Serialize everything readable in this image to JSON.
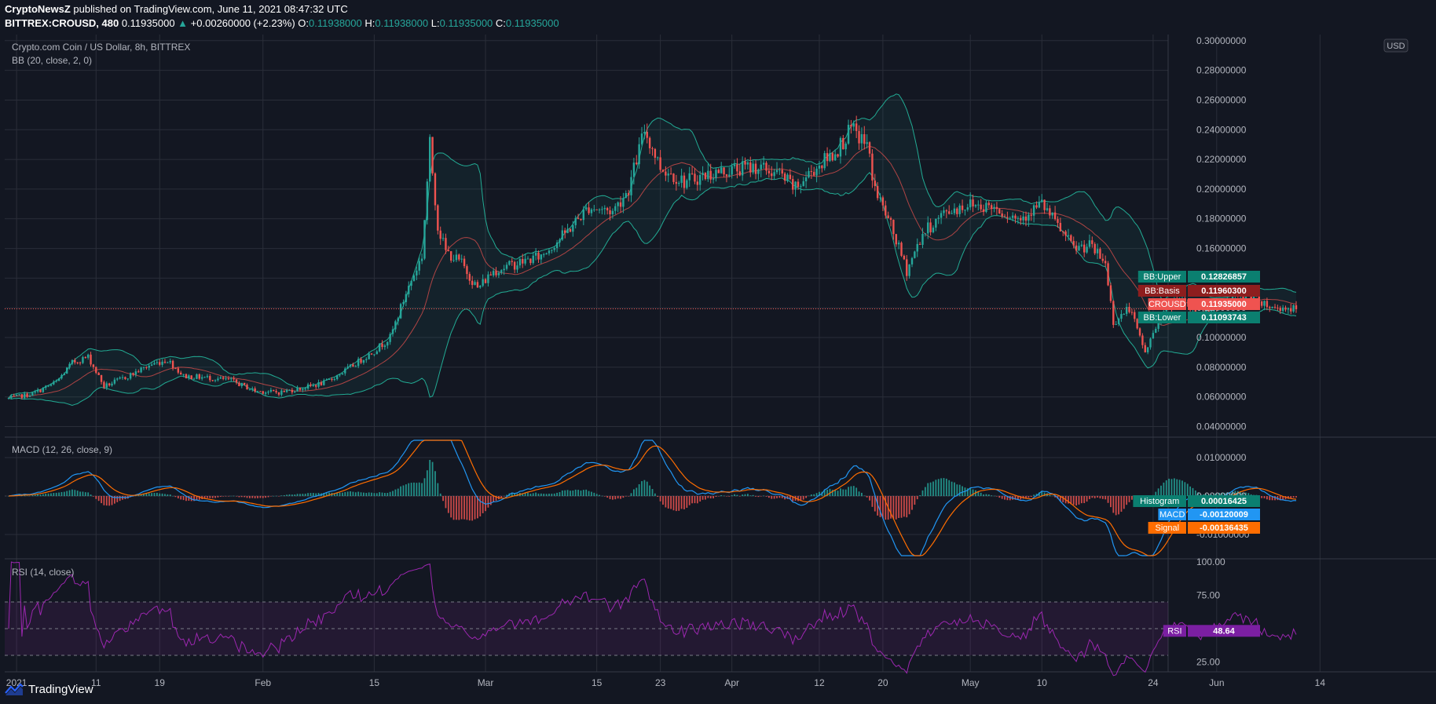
{
  "header": {
    "author": "CryptoNewsZ",
    "published": "published on TradingView.com, June 11, 2021 08:47:32 UTC",
    "symbol": "BITTREX:CROUSD, 480",
    "last": "0.11935000",
    "change_arrow": "▲",
    "change": "+0.00260000 (+2.23%)",
    "o_label": "O:",
    "o": "0.11938000",
    "h_label": "H:",
    "h": "0.11938000",
    "l_label": "L:",
    "l": "0.11935000",
    "c_label": "C:",
    "c": "0.11935000"
  },
  "panes": {
    "price_title": "Crypto.com Coin / US Dollar, 8h, BITTREX",
    "bb_title": "BB (20, close, 2, 0)",
    "currency": "USD",
    "macd_title": "MACD (12, 26, close, 9)",
    "rsi_title": "RSI (14, close)"
  },
  "footer": {
    "brand": "TradingView"
  },
  "colors": {
    "background": "#131722",
    "up": "#26a69a",
    "down": "#ef5350",
    "bb_band": "#22ab94",
    "bb_basis": "#ef5350",
    "macd": "#2196f3",
    "signal": "#ff6d00",
    "rsi": "#9c27b0",
    "grid": "#2a2e39"
  },
  "chart_data": [
    {
      "type": "candlestick",
      "name": "CROUSD price with Bollinger Bands",
      "title": "Crypto.com Coin / US Dollar, 8h, BITTREX",
      "interval": "8h",
      "ylim": [
        0.035,
        0.302
      ],
      "y_ticks": [
        "0.04000000",
        "0.06000000",
        "0.08000000",
        "0.10000000",
        "0.12000000",
        "0.14000000",
        "0.16000000",
        "0.18000000",
        "0.20000000",
        "0.22000000",
        "0.24000000",
        "0.26000000",
        "0.28000000",
        "0.30000000"
      ],
      "x_ticks": [
        "2021",
        "11",
        "19",
        "Feb",
        "15",
        "Mar",
        "15",
        "23",
        "Apr",
        "12",
        "20",
        "May",
        "10",
        "24",
        "Jun",
        "14"
      ],
      "x_tick_dates": [
        "2021-01-01",
        "2021-01-11",
        "2021-01-19",
        "2021-02-01",
        "2021-02-15",
        "2021-03-01",
        "2021-03-15",
        "2021-03-23",
        "2021-04-01",
        "2021-04-12",
        "2021-04-20",
        "2021-05-01",
        "2021-05-10",
        "2021-05-24",
        "2021-06-01",
        "2021-06-14"
      ],
      "close_path": [
        [
          "2020-12-31",
          0.059
        ],
        [
          "2021-01-03",
          0.062
        ],
        [
          "2021-01-06",
          0.07
        ],
        [
          "2021-01-08",
          0.083
        ],
        [
          "2021-01-10",
          0.087
        ],
        [
          "2021-01-12",
          0.067
        ],
        [
          "2021-01-15",
          0.074
        ],
        [
          "2021-01-18",
          0.082
        ],
        [
          "2021-01-20",
          0.085
        ],
        [
          "2021-01-22",
          0.074
        ],
        [
          "2021-01-25",
          0.073
        ],
        [
          "2021-01-28",
          0.071
        ],
        [
          "2021-01-31",
          0.064
        ],
        [
          "2021-02-03",
          0.063
        ],
        [
          "2021-02-06",
          0.066
        ],
        [
          "2021-02-09",
          0.07
        ],
        [
          "2021-02-12",
          0.08
        ],
        [
          "2021-02-15",
          0.091
        ],
        [
          "2021-02-17",
          0.1
        ],
        [
          "2021-02-19",
          0.13
        ],
        [
          "2021-02-21",
          0.155
        ],
        [
          "2021-02-22",
          0.23
        ],
        [
          "2021-02-23",
          0.175
        ],
        [
          "2021-02-24",
          0.158
        ],
        [
          "2021-02-26",
          0.15
        ],
        [
          "2021-02-28",
          0.133
        ],
        [
          "2021-03-02",
          0.145
        ],
        [
          "2021-03-05",
          0.15
        ],
        [
          "2021-03-08",
          0.155
        ],
        [
          "2021-03-11",
          0.17
        ],
        [
          "2021-03-14",
          0.188
        ],
        [
          "2021-03-17",
          0.185
        ],
        [
          "2021-03-19",
          0.2
        ],
        [
          "2021-03-21",
          0.24
        ],
        [
          "2021-03-23",
          0.215
        ],
        [
          "2021-03-26",
          0.205
        ],
        [
          "2021-03-29",
          0.21
        ],
        [
          "2021-04-01",
          0.213
        ],
        [
          "2021-04-04",
          0.215
        ],
        [
          "2021-04-07",
          0.21
        ],
        [
          "2021-04-09",
          0.2
        ],
        [
          "2021-04-11",
          0.212
        ],
        [
          "2021-04-14",
          0.225
        ],
        [
          "2021-04-16",
          0.24
        ],
        [
          "2021-04-18",
          0.23
        ],
        [
          "2021-04-19",
          0.2
        ],
        [
          "2021-04-21",
          0.175
        ],
        [
          "2021-04-23",
          0.145
        ],
        [
          "2021-04-25",
          0.17
        ],
        [
          "2021-04-28",
          0.185
        ],
        [
          "2021-05-01",
          0.19
        ],
        [
          "2021-05-04",
          0.188
        ],
        [
          "2021-05-07",
          0.18
        ],
        [
          "2021-05-10",
          0.19
        ],
        [
          "2021-05-12",
          0.175
        ],
        [
          "2021-05-14",
          0.16
        ],
        [
          "2021-05-16",
          0.162
        ],
        [
          "2021-05-18",
          0.15
        ],
        [
          "2021-05-19",
          0.11
        ],
        [
          "2021-05-21",
          0.12
        ],
        [
          "2021-05-23",
          0.09
        ],
        [
          "2021-05-25",
          0.115
        ],
        [
          "2021-05-27",
          0.125
        ],
        [
          "2021-05-30",
          0.115
        ],
        [
          "2021-06-02",
          0.125
        ],
        [
          "2021-06-05",
          0.13
        ],
        [
          "2021-06-08",
          0.12
        ],
        [
          "2021-06-10",
          0.12
        ],
        [
          "2021-06-11",
          0.119
        ]
      ],
      "series": [
        {
          "name": "BB:Upper",
          "last": "0.12826857"
        },
        {
          "name": "BB:Basis",
          "last": "0.11960300"
        },
        {
          "name": "CROUSD",
          "last": "0.11935000"
        },
        {
          "name": "BB:Lower",
          "last": "0.11093743"
        }
      ]
    },
    {
      "type": "line",
      "name": "MACD",
      "title": "MACD (12, 26, close, 9)",
      "ylim": [
        -0.0155,
        0.0145
      ],
      "y_ticks": [
        "0.01000000",
        "0.00000000",
        "-0.01000000"
      ],
      "series": [
        {
          "name": "Histogram",
          "last": "0.00016425"
        },
        {
          "name": "MACD",
          "last": "-0.00120009"
        },
        {
          "name": "Signal",
          "last": "-0.00136435"
        }
      ]
    },
    {
      "type": "line",
      "name": "RSI",
      "title": "RSI (14, close)",
      "ylim": [
        20,
        100
      ],
      "y_ticks": [
        "100.00",
        "75.00",
        "25.00"
      ],
      "bands": [
        30,
        70
      ],
      "series": [
        {
          "name": "RSI",
          "last": "48.64"
        }
      ]
    }
  ]
}
